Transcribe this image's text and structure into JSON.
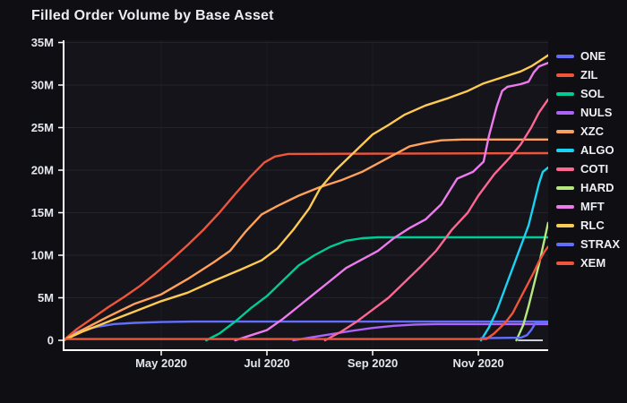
{
  "chart_data": {
    "type": "line",
    "title": "Filled Order Volume by Base Asset",
    "xlabel": "",
    "ylabel": "",
    "grid": true,
    "legend_position": "right",
    "x_unit": "months since 2020-03-01",
    "x_domain": [
      0.1525,
      9.322
    ],
    "y_domain_millions": [
      -1.158,
      35.26
    ],
    "x_ticks": [
      {
        "t": 2,
        "label": "May 2020"
      },
      {
        "t": 4,
        "label": "Jul 2020"
      },
      {
        "t": 6,
        "label": "Sep 2020"
      },
      {
        "t": 8,
        "label": "Nov 2020"
      }
    ],
    "y_ticks": [
      {
        "v": 0,
        "label": "0"
      },
      {
        "v": 5,
        "label": "5M"
      },
      {
        "v": 10,
        "label": "10M"
      },
      {
        "v": 15,
        "label": "15M"
      },
      {
        "v": 20,
        "label": "20M"
      },
      {
        "v": 25,
        "label": "25M"
      },
      {
        "v": 30,
        "label": "30M"
      },
      {
        "v": 35,
        "label": "35M"
      }
    ],
    "zeroline_segment": {
      "t_range": [
        8.75,
        9.22
      ],
      "v": 0,
      "color": "#c9ced8"
    },
    "series": [
      {
        "name": "ONE",
        "color": "#636efa",
        "final_value_millions": 2.2,
        "points": [
          [
            0.15,
            0
          ],
          [
            0.3,
            0.7
          ],
          [
            0.5,
            1.2
          ],
          [
            0.8,
            1.6
          ],
          [
            1.1,
            1.9
          ],
          [
            1.5,
            2.05
          ],
          [
            2,
            2.15
          ],
          [
            2.6,
            2.2
          ],
          [
            9.32,
            2.2
          ]
        ]
      },
      {
        "name": "ZIL",
        "color": "#ef553b",
        "final_value_millions": 22,
        "points": [
          [
            0.15,
            0
          ],
          [
            0.4,
            1.3
          ],
          [
            0.7,
            2.6
          ],
          [
            1,
            3.9
          ],
          [
            1.3,
            5.1
          ],
          [
            1.6,
            6.4
          ],
          [
            1.9,
            7.9
          ],
          [
            2.2,
            9.5
          ],
          [
            2.5,
            11.2
          ],
          [
            2.8,
            13
          ],
          [
            3.1,
            15
          ],
          [
            3.4,
            17.2
          ],
          [
            3.7,
            19.3
          ],
          [
            3.95,
            20.9
          ],
          [
            4.15,
            21.6
          ],
          [
            4.4,
            21.9
          ],
          [
            9.32,
            22
          ]
        ]
      },
      {
        "name": "SOL",
        "color": "#00cc96",
        "final_value_millions": 12.1,
        "points": [
          [
            2.85,
            0
          ],
          [
            3.1,
            0.8
          ],
          [
            3.4,
            2.2
          ],
          [
            3.7,
            3.8
          ],
          [
            4,
            5.2
          ],
          [
            4.3,
            7
          ],
          [
            4.6,
            8.8
          ],
          [
            4.9,
            10
          ],
          [
            5.2,
            11
          ],
          [
            5.5,
            11.7
          ],
          [
            5.8,
            12
          ],
          [
            6.1,
            12.1
          ],
          [
            9.32,
            12.1
          ]
        ]
      },
      {
        "name": "NULS",
        "color": "#ab63fa",
        "final_value_millions": 1.9,
        "points": [
          [
            4.5,
            0
          ],
          [
            4.8,
            0.3
          ],
          [
            5.2,
            0.7
          ],
          [
            5.6,
            1.1
          ],
          [
            6,
            1.45
          ],
          [
            6.4,
            1.7
          ],
          [
            6.8,
            1.85
          ],
          [
            7.2,
            1.9
          ],
          [
            9.32,
            1.9
          ]
        ]
      },
      {
        "name": "XZC",
        "color": "#ffa15a",
        "final_value_millions": 23.6,
        "points": [
          [
            0.15,
            0
          ],
          [
            0.5,
            1.2
          ],
          [
            1,
            2.8
          ],
          [
            1.5,
            4.3
          ],
          [
            2,
            5.4
          ],
          [
            2.5,
            7.2
          ],
          [
            3,
            9.2
          ],
          [
            3.3,
            10.5
          ],
          [
            3.6,
            12.8
          ],
          [
            3.9,
            14.8
          ],
          [
            4.2,
            15.8
          ],
          [
            4.6,
            17
          ],
          [
            5,
            18
          ],
          [
            5.4,
            18.8
          ],
          [
            5.8,
            19.8
          ],
          [
            6.1,
            20.8
          ],
          [
            6.4,
            21.8
          ],
          [
            6.7,
            22.8
          ],
          [
            7,
            23.2
          ],
          [
            7.3,
            23.5
          ],
          [
            7.7,
            23.6
          ],
          [
            9.32,
            23.6
          ]
        ]
      },
      {
        "name": "ALGO",
        "color": "#19d3f3",
        "final_value_millions": 20.3,
        "points": [
          [
            8.05,
            0
          ],
          [
            8.2,
            1.5
          ],
          [
            8.35,
            3.5
          ],
          [
            8.5,
            6
          ],
          [
            8.65,
            8.5
          ],
          [
            8.8,
            11
          ],
          [
            8.95,
            13.5
          ],
          [
            9.05,
            16
          ],
          [
            9.15,
            18.5
          ],
          [
            9.22,
            19.8
          ],
          [
            9.32,
            20.3
          ]
        ]
      },
      {
        "name": "COTI",
        "color": "#ff6692",
        "final_value_millions": 28.3,
        "points": [
          [
            5.1,
            0
          ],
          [
            5.4,
            1
          ],
          [
            5.7,
            2.2
          ],
          [
            6,
            3.6
          ],
          [
            6.3,
            5
          ],
          [
            6.6,
            6.8
          ],
          [
            6.9,
            8.6
          ],
          [
            7.2,
            10.5
          ],
          [
            7.5,
            13
          ],
          [
            7.8,
            15
          ],
          [
            8,
            17
          ],
          [
            8.3,
            19.5
          ],
          [
            8.6,
            21.5
          ],
          [
            8.8,
            23
          ],
          [
            9,
            25
          ],
          [
            9.15,
            26.8
          ],
          [
            9.32,
            28.3
          ]
        ]
      },
      {
        "name": "HARD",
        "color": "#b6e880",
        "final_value_millions": 13.8,
        "points": [
          [
            8.72,
            0
          ],
          [
            8.85,
            1.8
          ],
          [
            8.95,
            4
          ],
          [
            9.05,
            6.5
          ],
          [
            9.15,
            9
          ],
          [
            9.25,
            11.8
          ],
          [
            9.32,
            13.8
          ]
        ]
      },
      {
        "name": "MFT",
        "color": "#ee7bee",
        "final_value_millions": 32.6,
        "points": [
          [
            3.4,
            0
          ],
          [
            3.7,
            0.6
          ],
          [
            4,
            1.2
          ],
          [
            4.3,
            2.5
          ],
          [
            4.6,
            4
          ],
          [
            4.9,
            5.5
          ],
          [
            5.2,
            7
          ],
          [
            5.5,
            8.5
          ],
          [
            5.8,
            9.5
          ],
          [
            6.1,
            10.5
          ],
          [
            6.4,
            12
          ],
          [
            6.7,
            13.2
          ],
          [
            7,
            14.2
          ],
          [
            7.3,
            16
          ],
          [
            7.6,
            19
          ],
          [
            7.9,
            19.8
          ],
          [
            8.1,
            21
          ],
          [
            8.2,
            24
          ],
          [
            8.35,
            27.5
          ],
          [
            8.45,
            29.3
          ],
          [
            8.55,
            29.8
          ],
          [
            8.8,
            30.1
          ],
          [
            8.95,
            30.4
          ],
          [
            9.05,
            31.5
          ],
          [
            9.15,
            32.2
          ],
          [
            9.32,
            32.6
          ]
        ]
      },
      {
        "name": "RLC",
        "color": "#fecb52",
        "final_value_millions": 33.5,
        "points": [
          [
            0.15,
            0
          ],
          [
            0.5,
            1
          ],
          [
            1,
            2.2
          ],
          [
            1.5,
            3.4
          ],
          [
            2,
            4.6
          ],
          [
            2.5,
            5.6
          ],
          [
            3,
            7
          ],
          [
            3.5,
            8.3
          ],
          [
            3.9,
            9.4
          ],
          [
            4.2,
            10.8
          ],
          [
            4.5,
            13
          ],
          [
            4.8,
            15.5
          ],
          [
            5,
            17.8
          ],
          [
            5.3,
            20
          ],
          [
            5.6,
            21.8
          ],
          [
            6,
            24.2
          ],
          [
            6.3,
            25.3
          ],
          [
            6.6,
            26.5
          ],
          [
            7,
            27.6
          ],
          [
            7.4,
            28.4
          ],
          [
            7.8,
            29.3
          ],
          [
            8.1,
            30.2
          ],
          [
            8.5,
            31
          ],
          [
            8.8,
            31.6
          ],
          [
            9,
            32.2
          ],
          [
            9.15,
            32.8
          ],
          [
            9.32,
            33.5
          ]
        ]
      },
      {
        "name": "STRAX",
        "color": "#636efa",
        "final_value_millions": 2.05,
        "points": [
          [
            8.05,
            0.25
          ],
          [
            8.8,
            0.3
          ],
          [
            8.92,
            0.6
          ],
          [
            9,
            1.2
          ],
          [
            9.08,
            2
          ],
          [
            9.32,
            2.05
          ]
        ]
      },
      {
        "name": "XEM",
        "color": "#ef553b",
        "final_value_millions": 11,
        "points": [
          [
            0.15,
            0.15
          ],
          [
            8.15,
            0.15
          ],
          [
            8.3,
            0.8
          ],
          [
            8.5,
            2
          ],
          [
            8.65,
            3.2
          ],
          [
            8.8,
            5
          ],
          [
            8.95,
            6.8
          ],
          [
            9.05,
            8
          ],
          [
            9.15,
            9.3
          ],
          [
            9.25,
            10.4
          ],
          [
            9.32,
            11
          ]
        ]
      }
    ],
    "layout_colors": {
      "paper_bg": "#0f0f13",
      "plot_bg": "#14141a",
      "hgrid": "#23232b",
      "vgrid": "#1d1d25",
      "axis_line": "#ffffff",
      "tick_text": "#e3e6ec",
      "title_text": "#edeef3"
    }
  }
}
